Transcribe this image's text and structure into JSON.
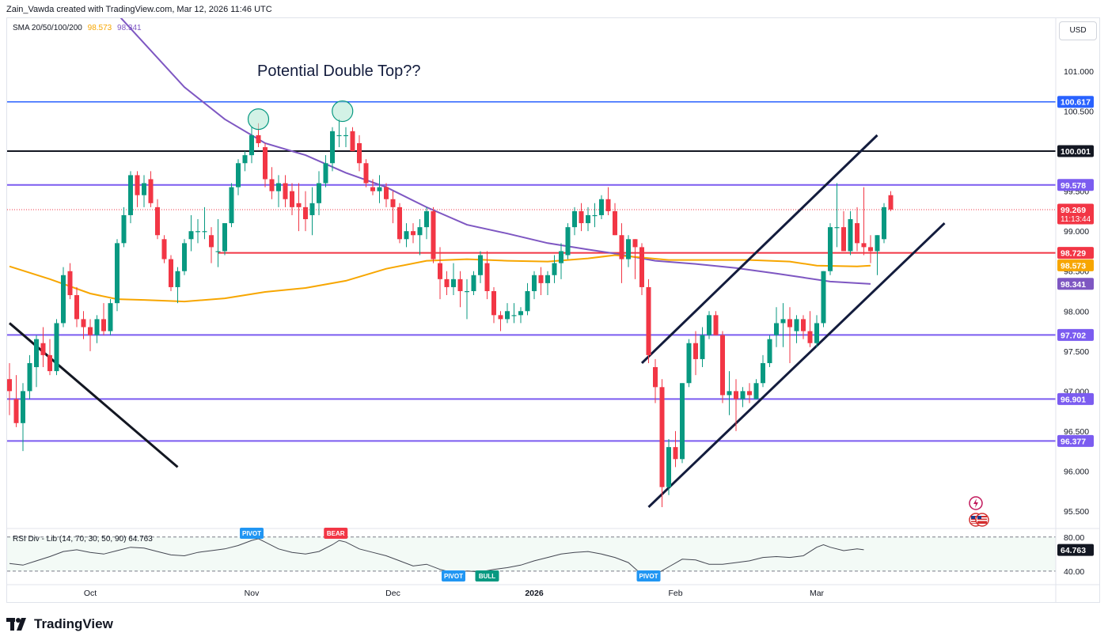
{
  "header": {
    "credit": "Zain_Vawda created with TradingView.com, Mar 12, 2026 11:46 UTC"
  },
  "legend": {
    "label": "SMA 20/50/100/200",
    "value_100": "98.573",
    "value_200": "98.341"
  },
  "currency": "USD",
  "rsi_legend": {
    "label": "RSI Div - Lib (14, 70, 30, 50, 90)",
    "value": "64.763"
  },
  "logo": {
    "text": "TradingView"
  },
  "colors": {
    "bull": "#089981",
    "bear": "#f23645",
    "sma100": "#f7a600",
    "sma200": "#7e57c2",
    "channel": "#131c3d",
    "level_purple": "#7b5cf0",
    "level_blue": "#2962ff",
    "level_red": "#f23645"
  },
  "chart_data": {
    "type": "candlestick",
    "title": "Potential Double Top??",
    "ylim": [
      95.25,
      101.6
    ],
    "y_ticks": [
      "101.000",
      "100.500",
      "100.000",
      "99.500",
      "99.000",
      "98.500",
      "98.000",
      "97.500",
      "97.000",
      "96.500",
      "96.000",
      "95.500"
    ],
    "x_ticks": [
      {
        "label": "Oct",
        "index": 12
      },
      {
        "label": "Nov",
        "index": 36
      },
      {
        "label": "Dec",
        "index": 57
      },
      {
        "label": "2026",
        "index": 78
      },
      {
        "label": "Feb",
        "index": 99
      },
      {
        "label": "Mar",
        "index": 120
      }
    ],
    "candles": [
      [
        97.15,
        97.35,
        96.7,
        97.0
      ],
      [
        96.9,
        97.2,
        96.55,
        96.6
      ],
      [
        96.6,
        97.1,
        96.25,
        97.0
      ],
      [
        97.0,
        97.45,
        96.9,
        97.35
      ],
      [
        97.3,
        97.7,
        97.05,
        97.65
      ],
      [
        97.6,
        97.8,
        97.3,
        97.45
      ],
      [
        97.45,
        97.65,
        97.2,
        97.25
      ],
      [
        97.25,
        97.9,
        97.2,
        97.85
      ],
      [
        97.85,
        98.55,
        97.8,
        98.45
      ],
      [
        98.5,
        98.6,
        98.15,
        98.2
      ],
      [
        98.2,
        98.3,
        97.8,
        97.9
      ],
      [
        97.9,
        98.0,
        97.65,
        97.8
      ],
      [
        97.8,
        97.9,
        97.5,
        97.7
      ],
      [
        97.7,
        97.95,
        97.6,
        97.9
      ],
      [
        97.9,
        98.1,
        97.7,
        97.75
      ],
      [
        97.75,
        98.15,
        97.7,
        98.1
      ],
      [
        98.1,
        98.9,
        98.0,
        98.85
      ],
      [
        98.85,
        99.3,
        98.8,
        99.2
      ],
      [
        99.2,
        99.75,
        99.1,
        99.7
      ],
      [
        99.7,
        99.75,
        99.3,
        99.45
      ],
      [
        99.45,
        99.7,
        99.3,
        99.6
      ],
      [
        99.65,
        99.75,
        99.3,
        99.35
      ],
      [
        99.3,
        99.4,
        98.9,
        98.95
      ],
      [
        98.9,
        98.95,
        98.6,
        98.65
      ],
      [
        98.65,
        98.7,
        98.25,
        98.3
      ],
      [
        98.3,
        98.55,
        98.1,
        98.5
      ],
      [
        98.5,
        98.9,
        98.45,
        98.85
      ],
      [
        98.9,
        99.2,
        98.75,
        99.0
      ],
      [
        99.0,
        99.15,
        98.85,
        99.0
      ],
      [
        99.0,
        99.3,
        98.9,
        99.0
      ],
      [
        98.95,
        99.05,
        98.6,
        98.8
      ],
      [
        98.75,
        99.15,
        98.55,
        98.75
      ],
      [
        98.75,
        99.1,
        98.7,
        99.1
      ],
      [
        99.1,
        99.6,
        99.05,
        99.55
      ],
      [
        99.55,
        99.9,
        99.45,
        99.85
      ],
      [
        99.85,
        100.0,
        99.75,
        99.95
      ],
      [
        99.95,
        100.3,
        99.85,
        100.2
      ],
      [
        100.2,
        100.35,
        100.05,
        100.1
      ],
      [
        100.05,
        100.1,
        99.55,
        99.65
      ],
      [
        99.65,
        99.8,
        99.4,
        99.5
      ],
      [
        99.5,
        99.7,
        99.3,
        99.6
      ],
      [
        99.6,
        99.7,
        99.3,
        99.4
      ],
      [
        99.5,
        99.6,
        99.2,
        99.3
      ],
      [
        99.35,
        99.6,
        99.0,
        99.3
      ],
      [
        99.3,
        99.5,
        99.0,
        99.15
      ],
      [
        99.2,
        99.55,
        98.95,
        99.35
      ],
      [
        99.35,
        99.75,
        99.2,
        99.6
      ],
      [
        99.6,
        99.95,
        99.55,
        99.85
      ],
      [
        99.85,
        100.3,
        99.75,
        100.25
      ],
      [
        100.2,
        100.4,
        100.05,
        100.2
      ],
      [
        100.2,
        100.3,
        100.05,
        100.2
      ],
      [
        100.25,
        100.3,
        100.0,
        100.0
      ],
      [
        100.1,
        100.2,
        99.75,
        99.85
      ],
      [
        99.85,
        99.9,
        99.55,
        99.6
      ],
      [
        99.55,
        99.65,
        99.45,
        99.5
      ],
      [
        99.5,
        99.7,
        99.35,
        99.55
      ],
      [
        99.55,
        99.6,
        99.3,
        99.4
      ],
      [
        99.4,
        99.5,
        99.1,
        99.3
      ],
      [
        99.3,
        99.35,
        98.85,
        98.9
      ],
      [
        98.9,
        99.1,
        98.8,
        99.0
      ],
      [
        99.0,
        99.1,
        98.85,
        98.95
      ],
      [
        98.95,
        99.15,
        98.7,
        99.05
      ],
      [
        99.05,
        99.3,
        98.9,
        99.25
      ],
      [
        99.25,
        99.3,
        98.6,
        98.65
      ],
      [
        98.6,
        98.8,
        98.15,
        98.4
      ],
      [
        98.4,
        98.5,
        98.2,
        98.3
      ],
      [
        98.3,
        98.6,
        98.2,
        98.4
      ],
      [
        98.4,
        98.5,
        98.05,
        98.25
      ],
      [
        98.25,
        98.4,
        97.9,
        98.25
      ],
      [
        98.25,
        98.5,
        98.2,
        98.45
      ],
      [
        98.45,
        98.75,
        98.35,
        98.7
      ],
      [
        98.6,
        98.75,
        98.15,
        98.25
      ],
      [
        98.25,
        98.3,
        97.85,
        97.95
      ],
      [
        97.95,
        98.0,
        97.75,
        97.9
      ],
      [
        97.9,
        98.1,
        97.85,
        98.0
      ],
      [
        97.95,
        98.1,
        97.85,
        97.95
      ],
      [
        97.95,
        98.05,
        97.85,
        98.0
      ],
      [
        98.0,
        98.35,
        97.95,
        98.25
      ],
      [
        98.25,
        98.5,
        98.15,
        98.45
      ],
      [
        98.45,
        98.55,
        98.2,
        98.35
      ],
      [
        98.35,
        98.5,
        98.2,
        98.45
      ],
      [
        98.45,
        98.7,
        98.35,
        98.6
      ],
      [
        98.6,
        98.85,
        98.4,
        98.75
      ],
      [
        98.7,
        99.1,
        98.65,
        99.05
      ],
      [
        99.05,
        99.3,
        98.95,
        99.25
      ],
      [
        99.25,
        99.35,
        99.0,
        99.1
      ],
      [
        99.1,
        99.3,
        99.0,
        99.2
      ],
      [
        99.2,
        99.35,
        99.05,
        99.2
      ],
      [
        99.2,
        99.45,
        99.15,
        99.4
      ],
      [
        99.4,
        99.55,
        99.2,
        99.25
      ],
      [
        99.25,
        99.35,
        98.95,
        98.95
      ],
      [
        98.95,
        99.1,
        98.35,
        98.65
      ],
      [
        98.65,
        98.95,
        98.55,
        98.9
      ],
      [
        98.9,
        98.9,
        98.4,
        98.8
      ],
      [
        98.8,
        98.85,
        98.2,
        98.3
      ],
      [
        98.3,
        98.4,
        97.35,
        97.45
      ],
      [
        97.3,
        97.4,
        96.85,
        97.05
      ],
      [
        97.05,
        97.15,
        95.55,
        95.8
      ],
      [
        95.8,
        96.4,
        95.7,
        96.3
      ],
      [
        96.3,
        96.5,
        96.05,
        96.15
      ],
      [
        96.15,
        97.1,
        96.1,
        97.1
      ],
      [
        97.1,
        97.65,
        97.05,
        97.6
      ],
      [
        97.6,
        97.75,
        97.2,
        97.4
      ],
      [
        97.4,
        97.8,
        97.3,
        97.7
      ],
      [
        97.7,
        98.0,
        97.65,
        97.95
      ],
      [
        97.95,
        98.0,
        97.7,
        97.7
      ],
      [
        97.7,
        97.75,
        96.85,
        96.95
      ],
      [
        96.95,
        97.25,
        96.7,
        97.0
      ],
      [
        97.0,
        97.15,
        96.5,
        96.9
      ],
      [
        96.9,
        97.05,
        96.8,
        97.0
      ],
      [
        97.0,
        97.1,
        96.85,
        96.95
      ],
      [
        96.9,
        97.15,
        96.9,
        97.1
      ],
      [
        97.1,
        97.45,
        97.05,
        97.35
      ],
      [
        97.35,
        97.7,
        97.3,
        97.65
      ],
      [
        97.7,
        98.05,
        97.55,
        97.85
      ],
      [
        97.85,
        98.1,
        97.55,
        97.9
      ],
      [
        97.9,
        98.05,
        97.35,
        97.8
      ],
      [
        97.75,
        97.95,
        97.6,
        97.9
      ],
      [
        97.9,
        97.95,
        97.65,
        97.75
      ],
      [
        97.75,
        98.0,
        97.55,
        97.6
      ],
      [
        97.6,
        97.95,
        97.55,
        97.85
      ],
      [
        97.85,
        98.5,
        97.8,
        98.5
      ],
      [
        98.5,
        99.1,
        98.45,
        99.05
      ],
      [
        99.05,
        99.6,
        98.8,
        99.05
      ],
      [
        99.05,
        99.25,
        98.75,
        98.75
      ],
      [
        98.75,
        99.25,
        98.7,
        99.15
      ],
      [
        99.1,
        99.3,
        98.75,
        98.85
      ],
      [
        98.85,
        99.55,
        98.7,
        98.8
      ],
      [
        98.8,
        98.95,
        98.6,
        98.75
      ],
      [
        98.75,
        98.95,
        98.45,
        98.95
      ],
      [
        98.9,
        99.35,
        98.85,
        99.3
      ],
      [
        99.45,
        99.5,
        99.25,
        99.27
      ]
    ],
    "sma100": [
      [
        0,
        98.56
      ],
      [
        6,
        98.4
      ],
      [
        12,
        98.22
      ],
      [
        16,
        98.15
      ],
      [
        20,
        98.14
      ],
      [
        26,
        98.12
      ],
      [
        32,
        98.16
      ],
      [
        38,
        98.24
      ],
      [
        44,
        98.29
      ],
      [
        50,
        98.38
      ],
      [
        56,
        98.53
      ],
      [
        62,
        98.63
      ],
      [
        68,
        98.65
      ],
      [
        74,
        98.63
      ],
      [
        80,
        98.62
      ],
      [
        86,
        98.66
      ],
      [
        90,
        98.7
      ],
      [
        94,
        98.67
      ],
      [
        98,
        98.64
      ],
      [
        104,
        98.64
      ],
      [
        110,
        98.64
      ],
      [
        116,
        98.62
      ],
      [
        120,
        98.57
      ],
      [
        126,
        98.56
      ],
      [
        128,
        98.57
      ]
    ],
    "sma200": [
      [
        14,
        101.9
      ],
      [
        20,
        101.35
      ],
      [
        26,
        100.8
      ],
      [
        32,
        100.4
      ],
      [
        38,
        100.1
      ],
      [
        44,
        99.95
      ],
      [
        50,
        99.73
      ],
      [
        56,
        99.55
      ],
      [
        62,
        99.3
      ],
      [
        68,
        99.08
      ],
      [
        74,
        98.97
      ],
      [
        80,
        98.85
      ],
      [
        86,
        98.77
      ],
      [
        90,
        98.72
      ],
      [
        96,
        98.63
      ],
      [
        102,
        98.59
      ],
      [
        108,
        98.54
      ],
      [
        114,
        98.47
      ],
      [
        118,
        98.42
      ],
      [
        122,
        98.37
      ],
      [
        128,
        98.34
      ]
    ],
    "levels": [
      {
        "value": 100.617,
        "label": "100.617",
        "color": "#2962ff",
        "width": 1.5
      },
      {
        "value": 100.001,
        "label": "100.001",
        "color": "#131722",
        "width": 2
      },
      {
        "value": 99.578,
        "label": "99.578",
        "color": "#7b5cf0",
        "width": 2
      },
      {
        "value": 98.729,
        "label": "98.729",
        "color": "#f23645",
        "width": 2,
        "from_index": 31
      },
      {
        "value": 97.702,
        "label": "97.702",
        "color": "#7b5cf0",
        "width": 2
      },
      {
        "value": 96.901,
        "label": "96.901",
        "color": "#7b5cf0",
        "width": 2
      },
      {
        "value": 96.377,
        "label": "96.377",
        "color": "#7b5cf0",
        "width": 2
      }
    ],
    "price_tags": [
      {
        "value": 99.269,
        "label": "99.269",
        "sublabel": "11:13:44",
        "color": "#f23645"
      },
      {
        "value": 98.573,
        "label": "98.573",
        "color": "#f7a600"
      },
      {
        "value": 98.341,
        "label": "98.341",
        "color": "#7e57c2"
      }
    ],
    "trendlines": [
      {
        "from": [
          0,
          97.85
        ],
        "to": [
          25,
          96.05
        ],
        "color": "#131722"
      },
      {
        "from": [
          94,
          97.35
        ],
        "to": [
          129,
          100.2
        ],
        "color": "#131c3d"
      },
      {
        "from": [
          95,
          95.55
        ],
        "to": [
          139,
          99.1
        ],
        "color": "#131c3d"
      }
    ],
    "top_markers": [
      {
        "index": 37,
        "value": 100.4
      },
      {
        "index": 49.5,
        "value": 100.5
      }
    ],
    "rsi": {
      "levels": [
        80,
        40
      ],
      "tick_labels": [
        "80.00",
        "40.00"
      ],
      "value": 64.763,
      "ylim": [
        25,
        90
      ],
      "points": [
        [
          0,
          49
        ],
        [
          2,
          47
        ],
        [
          4,
          52
        ],
        [
          6,
          57
        ],
        [
          8,
          63
        ],
        [
          10,
          65
        ],
        [
          12,
          62
        ],
        [
          14,
          60
        ],
        [
          16,
          64
        ],
        [
          18,
          68
        ],
        [
          20,
          67
        ],
        [
          22,
          63
        ],
        [
          24,
          59
        ],
        [
          26,
          58
        ],
        [
          28,
          62
        ],
        [
          30,
          64
        ],
        [
          32,
          66
        ],
        [
          34,
          70
        ],
        [
          36,
          76
        ],
        [
          37,
          78
        ],
        [
          38,
          74
        ],
        [
          40,
          66
        ],
        [
          42,
          62
        ],
        [
          44,
          60
        ],
        [
          46,
          63
        ],
        [
          48,
          71
        ],
        [
          49,
          76
        ],
        [
          50,
          74
        ],
        [
          52,
          66
        ],
        [
          54,
          62
        ],
        [
          56,
          58
        ],
        [
          58,
          52
        ],
        [
          60,
          46
        ],
        [
          62,
          48
        ],
        [
          64,
          42
        ],
        [
          66,
          38
        ],
        [
          68,
          40
        ],
        [
          70,
          39
        ],
        [
          72,
          42
        ],
        [
          74,
          44
        ],
        [
          76,
          47
        ],
        [
          78,
          52
        ],
        [
          80,
          56
        ],
        [
          82,
          60
        ],
        [
          84,
          62
        ],
        [
          86,
          63
        ],
        [
          88,
          60
        ],
        [
          90,
          56
        ],
        [
          92,
          50
        ],
        [
          94,
          36
        ],
        [
          95,
          31
        ],
        [
          96,
          36
        ],
        [
          98,
          45
        ],
        [
          100,
          54
        ],
        [
          102,
          53
        ],
        [
          104,
          48
        ],
        [
          106,
          48
        ],
        [
          108,
          50
        ],
        [
          110,
          52
        ],
        [
          112,
          56
        ],
        [
          114,
          57
        ],
        [
          116,
          56
        ],
        [
          118,
          58
        ],
        [
          120,
          68
        ],
        [
          121,
          71
        ],
        [
          122,
          68
        ],
        [
          124,
          64
        ],
        [
          126,
          66
        ],
        [
          127,
          65
        ]
      ],
      "markers": [
        {
          "index": 36,
          "label": "PIVOT",
          "color": "#2196f3",
          "pos": "above"
        },
        {
          "index": 48.5,
          "label": "BEAR",
          "color": "#f23645",
          "pos": "above"
        },
        {
          "index": 66,
          "label": "PIVOT",
          "color": "#2196f3",
          "pos": "below"
        },
        {
          "index": 71,
          "label": "BULL",
          "color": "#089981",
          "pos": "below"
        },
        {
          "index": 95,
          "label": "PIVOT",
          "color": "#2196f3",
          "pos": "below"
        }
      ]
    }
  }
}
